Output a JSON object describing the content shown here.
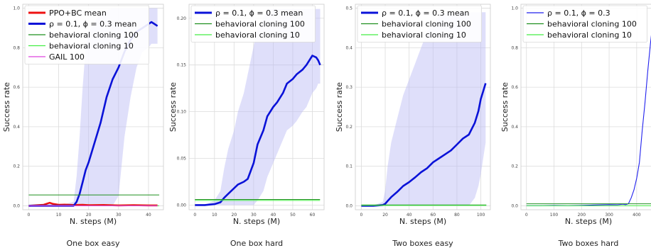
{
  "chart_data": [
    {
      "type": "line",
      "caption": "One box easy",
      "xlabel": "N. steps (M)",
      "ylabel": "Success rate",
      "xlim": [
        -2,
        45
      ],
      "ylim": [
        -0.02,
        1.02
      ],
      "xticks": [
        0,
        10,
        20,
        30,
        40
      ],
      "yticks": [
        0.0,
        0.2,
        0.4,
        0.6,
        0.8,
        1.0
      ],
      "ytick_labels": [
        "0.0",
        "0.2",
        "0.4",
        "0.6",
        "0.8",
        "1.0"
      ],
      "grid": true,
      "legend_position": "top-left",
      "series": [
        {
          "name": "PPO+BC mean",
          "style": "thick",
          "color": "#ee1111",
          "x": [
            0,
            5,
            7,
            8,
            10,
            12,
            15,
            18,
            20,
            25,
            30,
            35,
            40,
            43
          ],
          "y": [
            0.0,
            0.005,
            0.015,
            0.01,
            0.005,
            0.006,
            0.004,
            0.005,
            0.003,
            0.004,
            0.002,
            0.003,
            0.002,
            0.002
          ]
        },
        {
          "name": "ρ = 0.1, ϕ = 0.3 mean",
          "style": "thick",
          "color": "#0a12d8",
          "x": [
            0,
            5,
            10,
            15,
            16,
            17,
            18,
            19,
            20,
            22,
            24,
            26,
            28,
            30,
            32,
            34,
            36,
            38,
            40,
            41,
            42,
            43
          ],
          "y": [
            0.0,
            0.0,
            0.0,
            0.0,
            0.02,
            0.06,
            0.12,
            0.18,
            0.22,
            0.32,
            0.42,
            0.55,
            0.64,
            0.7,
            0.78,
            0.84,
            0.88,
            0.9,
            0.92,
            0.93,
            0.92,
            0.91
          ],
          "band_low": [
            0.0,
            0.0,
            0.0,
            0.0,
            0.0,
            0.0,
            0.0,
            0.0,
            0.0,
            0.0,
            0.0,
            0.0,
            0.0,
            0.05,
            0.35,
            0.55,
            0.7,
            0.78,
            0.8,
            0.82,
            0.82,
            0.82
          ],
          "band_high": [
            0.0,
            0.0,
            0.0,
            0.02,
            0.15,
            0.35,
            0.6,
            0.8,
            0.88,
            0.93,
            0.97,
            0.99,
            1.0,
            1.0,
            1.0,
            1.0,
            1.0,
            1.0,
            1.0,
            1.0,
            1.0,
            1.0
          ]
        },
        {
          "name": "behavioral cloning 100",
          "style": "hline",
          "color": "#1f8f1f",
          "y": 0.055
        },
        {
          "name": "behavioral cloning 10",
          "style": "hline",
          "color": "#44ee44",
          "y": 0.0
        },
        {
          "name": "GAIL 100",
          "style": "thin",
          "color": "#dd44dd",
          "x": [
            0,
            10,
            20,
            30,
            43
          ],
          "y": [
            0.0,
            0.0,
            0.0,
            0.0,
            0.0
          ]
        }
      ]
    },
    {
      "type": "line",
      "caption": "One box hard",
      "xlabel": "N. steps (M)",
      "ylabel": "Success rate",
      "xlim": [
        -3,
        66
      ],
      "ylim": [
        -0.005,
        0.215
      ],
      "xticks": [
        0,
        10,
        20,
        30,
        40,
        50,
        60
      ],
      "yticks": [
        0.0,
        0.05,
        0.1,
        0.15,
        0.2
      ],
      "ytick_labels": [
        "0.00",
        "0.05",
        "0.10",
        "0.15",
        "0.20"
      ],
      "grid": true,
      "legend_position": "top-left",
      "series": [
        {
          "name": "ρ = 0.1, ϕ = 0.3 mean",
          "style": "thick",
          "color": "#0a12d8",
          "x": [
            0,
            5,
            10,
            13,
            15,
            17,
            20,
            22,
            25,
            27,
            30,
            32,
            35,
            37,
            40,
            42,
            45,
            47,
            50,
            52,
            55,
            57,
            60,
            62,
            63,
            64
          ],
          "y": [
            0.0,
            0.0,
            0.001,
            0.003,
            0.008,
            0.012,
            0.018,
            0.022,
            0.025,
            0.028,
            0.045,
            0.065,
            0.08,
            0.095,
            0.105,
            0.11,
            0.12,
            0.13,
            0.135,
            0.14,
            0.145,
            0.15,
            0.16,
            0.158,
            0.155,
            0.15
          ],
          "band_low": [
            0.0,
            0.0,
            0.0,
            0.0,
            0.0,
            0.0,
            0.0,
            0.0,
            0.0,
            0.0,
            0.0,
            0.005,
            0.015,
            0.03,
            0.045,
            0.055,
            0.07,
            0.08,
            0.085,
            0.09,
            0.1,
            0.105,
            0.12,
            0.125,
            0.13,
            0.13
          ],
          "band_high": [
            0.0,
            0.0,
            0.005,
            0.015,
            0.04,
            0.06,
            0.08,
            0.1,
            0.12,
            0.14,
            0.17,
            0.19,
            0.2,
            0.21,
            0.21,
            0.21,
            0.21,
            0.21,
            0.21,
            0.21,
            0.21,
            0.21,
            0.21,
            0.21,
            0.21,
            0.21
          ]
        },
        {
          "name": "behavioral cloning 100",
          "style": "hline",
          "color": "#1f8f1f",
          "y": 0.006
        },
        {
          "name": "behavioral cloning 10",
          "style": "hline",
          "color": "#44ee44",
          "y": 0.005
        }
      ]
    },
    {
      "type": "line",
      "caption": "Two boxes easy",
      "xlabel": "N. steps (M)",
      "ylabel": "Success rate",
      "xlim": [
        -5,
        108
      ],
      "ylim": [
        -0.01,
        0.51
      ],
      "xticks": [
        0,
        20,
        40,
        60,
        80,
        100
      ],
      "yticks": [
        0.0,
        0.1,
        0.2,
        0.3,
        0.4,
        0.5
      ],
      "ytick_labels": [
        "0.0",
        "0.1",
        "0.2",
        "0.3",
        "0.4",
        "0.5"
      ],
      "grid": true,
      "legend_position": "top-left",
      "series": [
        {
          "name": "ρ = 0.1, ϕ = 0.3 mean",
          "style": "thick",
          "color": "#0a12d8",
          "x": [
            0,
            10,
            18,
            20,
            22,
            25,
            30,
            35,
            40,
            45,
            50,
            55,
            60,
            65,
            70,
            75,
            80,
            85,
            90,
            95,
            98,
            100,
            102,
            104
          ],
          "y": [
            0.0,
            0.0,
            0.002,
            0.005,
            0.012,
            0.022,
            0.035,
            0.05,
            0.06,
            0.072,
            0.085,
            0.095,
            0.11,
            0.12,
            0.13,
            0.14,
            0.155,
            0.17,
            0.18,
            0.21,
            0.24,
            0.27,
            0.29,
            0.31
          ],
          "band_low": [
            0.0,
            0.0,
            0.0,
            0.0,
            0.0,
            0.0,
            0.0,
            0.0,
            0.0,
            0.0,
            0.0,
            0.0,
            0.0,
            0.0,
            0.0,
            0.0,
            0.0,
            0.0,
            0.0,
            0.02,
            0.05,
            0.08,
            0.12,
            0.16
          ],
          "band_high": [
            0.0,
            0.0,
            0.01,
            0.04,
            0.1,
            0.16,
            0.22,
            0.28,
            0.32,
            0.36,
            0.4,
            0.44,
            0.46,
            0.48,
            0.49,
            0.49,
            0.49,
            0.49,
            0.49,
            0.49,
            0.49,
            0.49,
            0.49,
            0.49
          ]
        },
        {
          "name": "behavioral cloning 100",
          "style": "hline",
          "color": "#1f8f1f",
          "y": 0.002
        },
        {
          "name": "behavioral cloning 10",
          "style": "hline",
          "color": "#44ee44",
          "y": 0.001
        }
      ]
    },
    {
      "type": "line",
      "caption": "Two boxes hard",
      "xlabel": "N. steps (M)",
      "ylabel": "Success rate",
      "xlim": [
        -20,
        470
      ],
      "ylim": [
        -0.02,
        1.02
      ],
      "xticks": [
        0,
        100,
        200,
        300,
        400
      ],
      "yticks": [
        0.0,
        0.2,
        0.4,
        0.6,
        0.8,
        1.0
      ],
      "ytick_labels": [
        "0.0",
        "0.2",
        "0.4",
        "0.6",
        "0.8",
        "1.0"
      ],
      "grid": true,
      "legend_position": "top-left",
      "series": [
        {
          "name": "ρ = 0.1, ϕ = 0.3",
          "style": "thin",
          "color": "#2222ee",
          "x": [
            0,
            50,
            100,
            150,
            200,
            250,
            300,
            330,
            350,
            360,
            370,
            380,
            390,
            400,
            410,
            420,
            430,
            440,
            450,
            460
          ],
          "y": [
            0.0,
            0.0,
            0.001,
            0.0,
            0.002,
            0.004,
            0.006,
            0.005,
            0.008,
            0.006,
            0.01,
            0.04,
            0.08,
            0.14,
            0.22,
            0.38,
            0.52,
            0.68,
            0.82,
            0.95
          ]
        },
        {
          "name": "behavioral cloning 100",
          "style": "hline",
          "color": "#1f8f1f",
          "y": 0.01
        },
        {
          "name": "behavioral cloning 10",
          "style": "hline",
          "color": "#44ee44",
          "y": 0.0
        }
      ]
    }
  ]
}
